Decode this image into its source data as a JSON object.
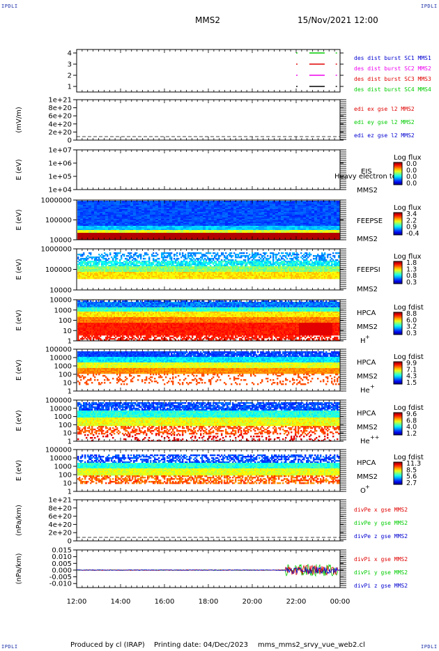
{
  "header": {
    "corner_label": "IPDLI",
    "spacecraft": "MMS2",
    "datetime": "15/Nov/2021 12:00"
  },
  "footer": {
    "credit": "Produced by cl (IRAP)",
    "printing_date": "Printing date: 04/Dec/2023",
    "filename": "mms_mms2_srvy_vue_web2.cl"
  },
  "colors": {
    "c1": "#000000",
    "c2": "#ee00ee",
    "c3": "#e00000",
    "c4": "#00cc00",
    "x": "#e00000",
    "y": "#00cc00",
    "z": "#0000d0"
  },
  "chart_data": [
    {
      "type": "line",
      "name": "burst-panel",
      "ytick_labels": [
        "4",
        "3",
        "2",
        "1"
      ],
      "ylim": [
        0.5,
        4.5
      ],
      "legend": [
        "des dist burst SC1 MMS1",
        "des dist burst SC2 MMS2",
        "des dist burst SC3 MMS3",
        "des dist burst SC4 MMS4"
      ],
      "xlim_hours": [
        12,
        24
      ],
      "series": [
        {
          "y": 4,
          "segments": [
            [
              22.0,
              22.1
            ],
            [
              22.6,
              23.3
            ],
            [
              23.8,
              24.0
            ]
          ]
        },
        {
          "y": 3,
          "segments": [
            [
              22.0,
              22.1
            ],
            [
              22.6,
              23.3
            ],
            [
              23.8,
              24.0
            ]
          ]
        },
        {
          "y": 2,
          "segments": [
            [
              22.0,
              22.1
            ],
            [
              22.6,
              23.3
            ],
            [
              23.8,
              24.0
            ]
          ]
        },
        {
          "y": 1,
          "segments": [
            [
              22.0,
              22.1
            ],
            [
              22.6,
              23.3
            ],
            [
              23.8,
              24.0
            ]
          ]
        }
      ]
    },
    {
      "type": "line",
      "name": "edi-panel",
      "ylabel": "(mV/m)",
      "ytick_labels": [
        "1e+21",
        "8e+20",
        "6e+20",
        "4e+20",
        "2e+20",
        "0"
      ],
      "legend": [
        "edi ex gse l2 MMS2",
        "edi ey gse l2 MMS2",
        "edi ez gse l2 MMS2"
      ]
    },
    {
      "type": "heatmap",
      "name": "eis-panel",
      "ylabel": "E (eV)",
      "ytick_labels": [
        "1e+07",
        "1e+06",
        "1e+05",
        "1e+04"
      ],
      "instrument": [
        "EIS",
        "MMS2"
      ],
      "overlay_text": "Heavy electron to",
      "colorbar": {
        "title": "Log flux",
        "ticks": [
          "0.0",
          "0.0",
          "0.0",
          "0.0"
        ]
      }
    },
    {
      "type": "heatmap",
      "name": "feepse-panel",
      "ylabel": "E (eV)",
      "ytick_labels": [
        "1000000",
        "100000",
        "10000"
      ],
      "instrument": [
        "FEEPSE",
        "MMS2"
      ],
      "colorbar": {
        "title": "Log flux",
        "ticks": [
          "3.4",
          "2.2",
          "0.9",
          "-0.4"
        ]
      }
    },
    {
      "type": "heatmap",
      "name": "feepsi-panel",
      "ylabel": "E (eV)",
      "ytick_labels": [
        "1000000",
        "100000",
        "10000"
      ],
      "instrument": [
        "FEEPSI",
        "MMS2"
      ],
      "colorbar": {
        "title": "Log flux",
        "ticks": [
          "1.8",
          "1.3",
          "0.8",
          "0.3"
        ]
      }
    },
    {
      "type": "heatmap",
      "name": "hpca-h-panel",
      "ylabel": "E (eV)",
      "ytick_labels": [
        "10000",
        "1000",
        "100",
        "10",
        "1"
      ],
      "instrument": [
        "HPCA",
        "MMS2"
      ],
      "species": "H",
      "species_sup": "+",
      "colorbar": {
        "title": "Log fdist",
        "ticks": [
          "8.8",
          "6.0",
          "3.2",
          "0.3"
        ]
      }
    },
    {
      "type": "heatmap",
      "name": "hpca-he-panel",
      "ylabel": "E (eV)",
      "ytick_labels": [
        "100000",
        "10000",
        "1000",
        "100",
        "10",
        "1"
      ],
      "instrument": [
        "HPCA",
        "MMS2"
      ],
      "species": "He",
      "species_sup": "+",
      "colorbar": {
        "title": "Log fdist",
        "ticks": [
          "9.9",
          "7.1",
          "4.3",
          "1.5"
        ]
      }
    },
    {
      "type": "heatmap",
      "name": "hpca-hepp-panel",
      "ylabel": "E (eV)",
      "ytick_labels": [
        "100000",
        "10000",
        "1000",
        "100",
        "10",
        "1"
      ],
      "instrument": [
        "HPCA",
        "MMS2"
      ],
      "species": "He",
      "species_sup": "++",
      "colorbar": {
        "title": "Log fdist",
        "ticks": [
          "9.6",
          "6.8",
          "4.0",
          "1.2"
        ]
      }
    },
    {
      "type": "heatmap",
      "name": "hpca-o-panel",
      "ylabel": "E (eV)",
      "ytick_labels": [
        "100000",
        "10000",
        "1000",
        "100",
        "10",
        "1"
      ],
      "instrument": [
        "HPCA",
        "MMS2"
      ],
      "species": "O",
      "species_sup": "+",
      "colorbar": {
        "title": "Log fdist",
        "ticks": [
          "11.3",
          "8.5",
          "5.6",
          "2.7"
        ]
      }
    },
    {
      "type": "line",
      "name": "divpe-panel",
      "ylabel": "(nPa/km)",
      "ytick_labels": [
        "1e+21",
        "8e+20",
        "6e+20",
        "4e+20",
        "2e+20",
        "0"
      ],
      "legend": [
        "divPe x gse MMS2",
        "divPe y gse MMS2",
        "divPe z gse MMS2"
      ]
    },
    {
      "type": "line",
      "name": "divpi-panel",
      "ylabel": "(nPa/km)",
      "ytick_labels": [
        "0.015",
        "0.010",
        "0.005",
        "0.000",
        "-0.005",
        "-0.010"
      ],
      "ylim": [
        -0.013,
        0.015
      ],
      "legend": [
        "divPi x gse MMS2",
        "divPi y gse MMS2",
        "divPi z gse MMS2"
      ]
    }
  ],
  "xaxis": {
    "tick_labels": [
      "12:00",
      "14:00",
      "16:00",
      "18:00",
      "20:00",
      "22:00",
      "00:00"
    ]
  }
}
